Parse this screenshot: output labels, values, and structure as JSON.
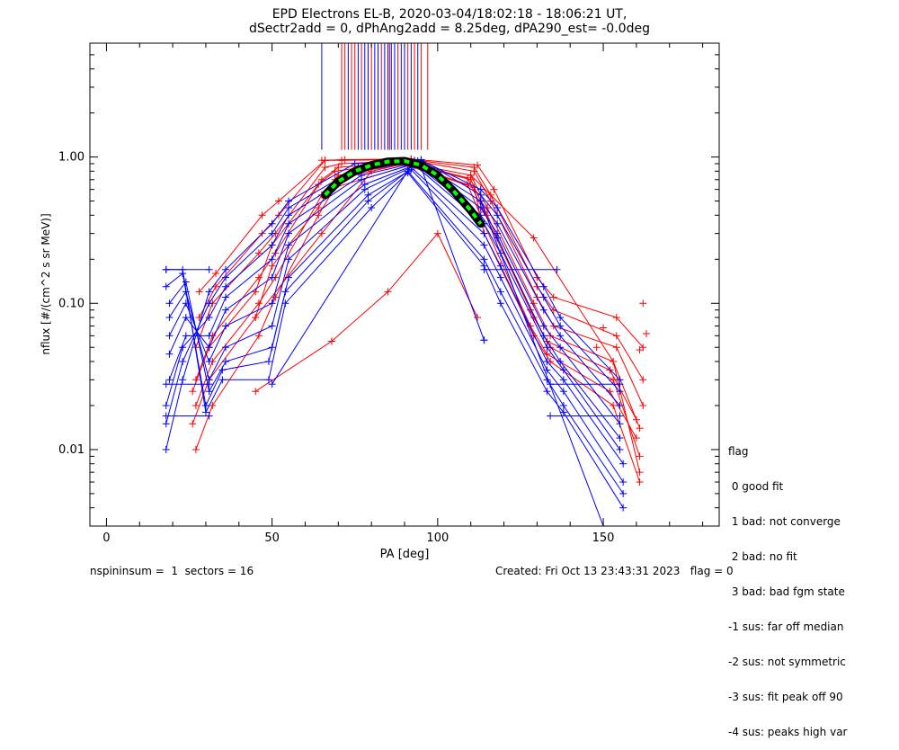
{
  "chart_data": {
    "type": "scatter",
    "title_line1": "EPD Electrons EL-B, 2020-03-04/18:02:18 - 18:06:21 UT,",
    "title_line2": "dSectr2add = 0, dPhAng2add = 8.25deg, dPA290_est=  -0.0deg",
    "xlabel": "PA [deg]",
    "ylabel": "nflux [#/(cm^2 s sr MeV)]",
    "xlim": [
      -5,
      185
    ],
    "ylim": [
      0.003,
      6.0
    ],
    "yscale": "log",
    "x_ticks": [
      0,
      50,
      100,
      150
    ],
    "x_tick_labels": [
      "0",
      "50",
      "100",
      "150"
    ],
    "y_ticks": [
      0.01,
      0.1,
      1.0
    ],
    "y_tick_labels": [
      "0.01",
      "0.10",
      "1.00"
    ],
    "grid": false,
    "colors": {
      "red": "#ff0000",
      "blue": "#0000ff",
      "fit_black": "#000000",
      "fit_green": "#00ff00"
    },
    "series": [
      {
        "color": "red",
        "x": [
          27,
          32,
          46,
          51,
          64,
          69,
          91,
          111,
          114,
          129,
          134,
          153,
          161
        ],
        "y": [
          0.01,
          0.02,
          0.06,
          0.11,
          0.4,
          0.62,
          0.87,
          0.62,
          0.3,
          0.06,
          0.04,
          0.02,
          0.006
        ]
      },
      {
        "color": "red",
        "x": [
          27,
          32,
          46,
          51,
          65,
          70,
          91,
          110,
          115,
          129,
          134,
          153,
          161
        ],
        "y": [
          0.02,
          0.04,
          0.1,
          0.15,
          0.55,
          0.75,
          0.9,
          0.7,
          0.4,
          0.08,
          0.05,
          0.03,
          0.009
        ]
      },
      {
        "color": "red",
        "x": [
          27,
          32,
          46,
          51,
          65,
          70,
          90,
          110,
          115,
          129,
          134,
          153,
          161
        ],
        "y": [
          0.03,
          0.06,
          0.15,
          0.22,
          0.7,
          0.85,
          0.92,
          0.75,
          0.45,
          0.1,
          0.06,
          0.04,
          0.014
        ]
      },
      {
        "color": "red",
        "x": [
          27,
          32,
          46,
          51,
          66,
          71,
          92,
          111,
          116,
          130,
          135,
          154,
          162
        ],
        "y": [
          0.05,
          0.1,
          0.22,
          0.3,
          0.85,
          0.9,
          0.95,
          0.8,
          0.5,
          0.11,
          0.07,
          0.05,
          0.02
        ]
      },
      {
        "color": "red",
        "x": [
          28,
          33,
          47,
          52,
          66,
          71,
          92,
          111,
          116,
          130,
          135,
          154,
          162
        ],
        "y": [
          0.08,
          0.13,
          0.3,
          0.4,
          0.95,
          0.95,
          0.96,
          0.85,
          0.55,
          0.13,
          0.09,
          0.06,
          0.03
        ]
      },
      {
        "color": "red",
        "x": [
          28,
          33,
          47,
          52,
          66,
          72,
          92,
          112,
          117,
          130,
          135,
          154,
          162
        ],
        "y": [
          0.12,
          0.16,
          0.4,
          0.5,
          0.95,
          0.96,
          0.97,
          0.88,
          0.6,
          0.15,
          0.11,
          0.08,
          0.05
        ]
      },
      {
        "color": "red",
        "x": [
          26,
          31,
          45,
          50,
          64,
          69,
          90,
          109,
          114,
          128,
          133,
          152,
          160
        ],
        "y": [
          0.015,
          0.03,
          0.08,
          0.18,
          0.45,
          0.7,
          0.9,
          0.65,
          0.35,
          0.07,
          0.045,
          0.025,
          0.012
        ]
      },
      {
        "color": "red",
        "x": [
          26,
          31,
          45,
          50,
          64,
          69,
          90,
          109,
          114,
          128,
          133,
          152,
          160
        ],
        "y": [
          0.025,
          0.05,
          0.12,
          0.25,
          0.65,
          0.8,
          0.93,
          0.72,
          0.42,
          0.09,
          0.055,
          0.035,
          0.016
        ]
      },
      {
        "color": "red",
        "x": [
          45,
          68,
          85,
          100,
          112
        ],
        "y": [
          0.025,
          0.055,
          0.12,
          0.3,
          0.08
        ]
      },
      {
        "color": "red",
        "x": [
          45,
          65,
          80
        ],
        "y": [
          0.08,
          0.3,
          0.8
        ]
      },
      {
        "color": "red",
        "x": [
          110,
          129,
          153,
          161
        ],
        "y": [
          0.75,
          0.28,
          0.04,
          0.007
        ]
      },
      {
        "color": "blue",
        "x": [
          18,
          23,
          31,
          36,
          50,
          55,
          75,
          95,
          113,
          118,
          132,
          137,
          155
        ],
        "y": [
          0.01,
          0.03,
          0.12,
          0.17,
          0.35,
          0.5,
          0.9,
          0.95,
          0.6,
          0.45,
          0.13,
          0.08,
          0.03
        ]
      },
      {
        "color": "blue",
        "x": [
          18,
          23,
          31,
          36,
          50,
          55,
          76,
          95,
          113,
          118,
          132,
          137,
          155
        ],
        "y": [
          0.015,
          0.04,
          0.1,
          0.15,
          0.3,
          0.45,
          0.85,
          0.96,
          0.55,
          0.4,
          0.11,
          0.07,
          0.025
        ]
      },
      {
        "color": "blue",
        "x": [
          18,
          23,
          31,
          36,
          50,
          55,
          76,
          94,
          113,
          118,
          132,
          137,
          155
        ],
        "y": [
          0.02,
          0.05,
          0.08,
          0.13,
          0.25,
          0.4,
          0.8,
          0.94,
          0.5,
          0.35,
          0.09,
          0.06,
          0.02
        ]
      },
      {
        "color": "blue",
        "x": [
          19,
          24,
          31,
          36,
          50,
          55,
          77,
          94,
          113,
          118,
          132,
          137,
          155
        ],
        "y": [
          0.03,
          0.06,
          0.06,
          0.11,
          0.2,
          0.35,
          0.75,
          0.92,
          0.45,
          0.3,
          0.07,
          0.05,
          0.015
        ]
      },
      {
        "color": "blue",
        "x": [
          19,
          24,
          31,
          36,
          50,
          55,
          77,
          93,
          113,
          118,
          132,
          137,
          155
        ],
        "y": [
          0.045,
          0.08,
          0.05,
          0.09,
          0.15,
          0.3,
          0.7,
          0.9,
          0.4,
          0.28,
          0.06,
          0.04,
          0.012
        ]
      },
      {
        "color": "blue",
        "x": [
          19,
          24,
          31,
          36,
          50,
          55,
          78,
          93,
          114,
          119,
          133,
          138,
          155
        ],
        "y": [
          0.06,
          0.1,
          0.04,
          0.07,
          0.1,
          0.25,
          0.65,
          0.88,
          0.35,
          0.22,
          0.05,
          0.035,
          0.01
        ]
      },
      {
        "color": "blue",
        "x": [
          19,
          24,
          31,
          36,
          50,
          55,
          78,
          92,
          114,
          119,
          133,
          138,
          156
        ],
        "y": [
          0.08,
          0.12,
          0.03,
          0.05,
          0.07,
          0.2,
          0.6,
          0.85,
          0.3,
          0.18,
          0.04,
          0.03,
          0.008
        ]
      },
      {
        "color": "blue",
        "x": [
          19,
          24,
          31,
          36,
          50,
          55,
          79,
          92,
          114,
          119,
          133,
          138,
          156
        ],
        "y": [
          0.1,
          0.14,
          0.025,
          0.04,
          0.05,
          0.15,
          0.55,
          0.82,
          0.25,
          0.15,
          0.035,
          0.025,
          0.006
        ]
      },
      {
        "color": "blue",
        "x": [
          18,
          23,
          30,
          35,
          49,
          54,
          79,
          91,
          114,
          119,
          133,
          138,
          156
        ],
        "y": [
          0.13,
          0.16,
          0.02,
          0.035,
          0.04,
          0.12,
          0.5,
          0.8,
          0.2,
          0.12,
          0.03,
          0.02,
          0.005
        ]
      },
      {
        "color": "blue",
        "x": [
          18,
          23,
          30,
          35,
          49,
          54,
          80,
          91,
          114,
          119,
          133,
          138,
          156
        ],
        "y": [
          0.17,
          0.17,
          0.018,
          0.03,
          0.03,
          0.1,
          0.45,
          0.78,
          0.18,
          0.1,
          0.025,
          0.018,
          0.004
        ]
      },
      {
        "color": "blue",
        "x": [
          18,
          31
        ],
        "y": [
          0.017,
          0.017
        ]
      },
      {
        "color": "blue",
        "x": [
          18,
          31
        ],
        "y": [
          0.028,
          0.028
        ]
      },
      {
        "color": "blue",
        "x": [
          18,
          31
        ],
        "y": [
          0.17,
          0.17
        ]
      },
      {
        "color": "blue",
        "x": [
          114,
          136
        ],
        "y": [
          0.17,
          0.17
        ]
      },
      {
        "color": "blue",
        "x": [
          134,
          155
        ],
        "y": [
          0.028,
          0.028
        ]
      },
      {
        "color": "blue",
        "x": [
          134,
          155
        ],
        "y": [
          0.017,
          0.017
        ]
      },
      {
        "color": "blue",
        "x": [
          95,
          114
        ],
        "y": [
          0.85,
          0.056
        ]
      },
      {
        "color": "blue",
        "x": [
          113,
          150
        ],
        "y": [
          0.5,
          0.003
        ]
      },
      {
        "color": "blue",
        "x": [
          50,
          93
        ],
        "y": [
          0.028,
          0.95
        ]
      }
    ],
    "extra_markers": [
      {
        "color": "red",
        "x": 162,
        "y": 0.1
      },
      {
        "color": "red",
        "x": 163,
        "y": 0.062
      },
      {
        "color": "red",
        "x": 161,
        "y": 0.048
      },
      {
        "color": "red",
        "x": 150,
        "y": 0.068
      },
      {
        "color": "red",
        "x": 148,
        "y": 0.05
      },
      {
        "color": "red",
        "x": 68,
        "y": 0.055
      },
      {
        "color": "red",
        "x": 65,
        "y": 0.95
      },
      {
        "color": "blue",
        "x": 114,
        "y": 0.056
      }
    ],
    "vertical_lines": [
      {
        "color": "blue",
        "x": 65
      },
      {
        "color": "red",
        "x": 71
      },
      {
        "color": "red",
        "x": 72
      },
      {
        "color": "blue",
        "x": 73
      },
      {
        "color": "red",
        "x": 74
      },
      {
        "color": "red",
        "x": 75
      },
      {
        "color": "blue",
        "x": 76
      },
      {
        "color": "red",
        "x": 77
      },
      {
        "color": "blue",
        "x": 78
      },
      {
        "color": "blue",
        "x": 79
      },
      {
        "color": "red",
        "x": 80
      },
      {
        "color": "blue",
        "x": 81
      },
      {
        "color": "blue",
        "x": 82
      },
      {
        "color": "red",
        "x": 83
      },
      {
        "color": "blue",
        "x": 84
      },
      {
        "color": "blue",
        "x": 85
      },
      {
        "color": "red",
        "x": 85.5
      },
      {
        "color": "blue",
        "x": 86
      },
      {
        "color": "blue",
        "x": 87
      },
      {
        "color": "red",
        "x": 88
      },
      {
        "color": "blue",
        "x": 89
      },
      {
        "color": "blue",
        "x": 90
      },
      {
        "color": "red",
        "x": 91
      },
      {
        "color": "blue",
        "x": 92
      },
      {
        "color": "red",
        "x": 93
      },
      {
        "color": "blue",
        "x": 94
      },
      {
        "color": "red",
        "x": 95
      },
      {
        "color": "red",
        "x": 97
      }
    ],
    "vertical_lines_y_bottom": 1.12,
    "fit_curve": {
      "x": [
        66,
        70,
        75,
        80,
        85,
        90,
        95,
        100,
        105,
        110,
        113
      ],
      "y": [
        0.55,
        0.68,
        0.8,
        0.88,
        0.93,
        0.94,
        0.88,
        0.75,
        0.58,
        0.43,
        0.35
      ]
    },
    "legend": {
      "title": "flag",
      "items": [
        " 0 good fit",
        " 1 bad: not converge",
        " 2 bad: no fit",
        " 3 bad: bad fgm state",
        "-1 sus: far off median",
        "-2 sus: not symmetric",
        "-3 sus: fit peak off 90",
        "-4 sus: peaks high var"
      ]
    },
    "footer": {
      "left": "nspininsum =  1  sectors = 16",
      "right": "Created: Fri Oct 13 23:43:31 2023   flag = 0"
    }
  }
}
